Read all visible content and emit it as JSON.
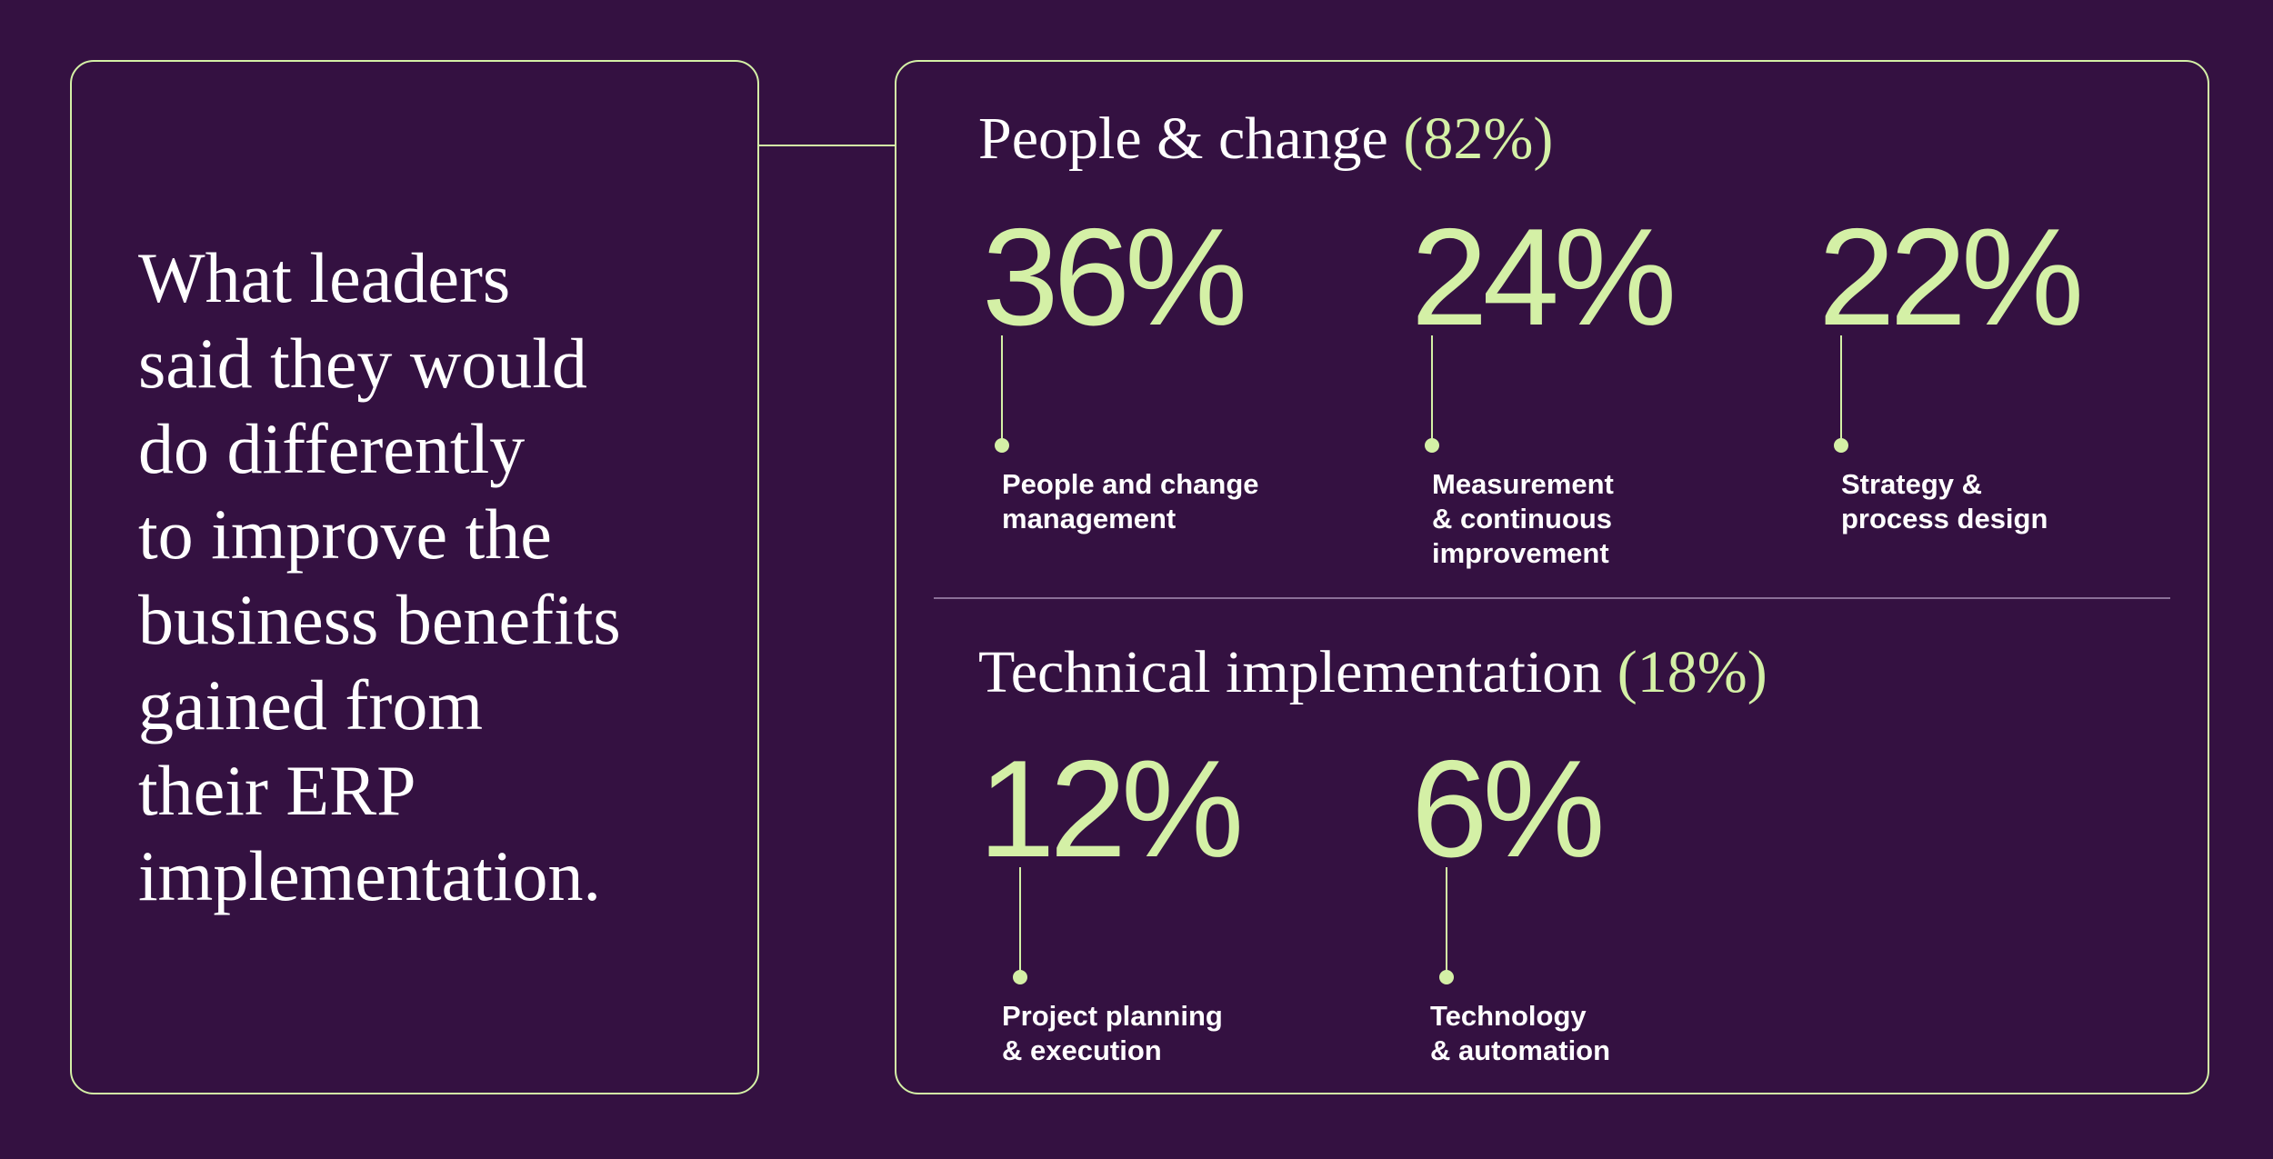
{
  "headline": {
    "lines": [
      "What leaders",
      "said they would",
      "do differently",
      "to improve the",
      "business benefits",
      "gained from",
      "their ERP",
      "implementation."
    ]
  },
  "sections": {
    "people": {
      "title": "People & change",
      "percent": "(82%)",
      "stats": [
        {
          "value": "36%",
          "label_lines": [
            "People and change",
            "management"
          ]
        },
        {
          "value": "24%",
          "label_lines": [
            "Measurement",
            "& continuous",
            "improvement"
          ]
        },
        {
          "value": "22%",
          "label_lines": [
            "Strategy &",
            "process design"
          ]
        }
      ]
    },
    "technical": {
      "title": "Technical implementation",
      "percent": "(18%)",
      "stats": [
        {
          "value": "12%",
          "label_lines": [
            "Project planning",
            "& execution"
          ]
        },
        {
          "value": "6%",
          "label_lines": [
            "Technology",
            "& automation"
          ]
        }
      ]
    }
  },
  "colors": {
    "background": "#341141",
    "accent": "#d4f0a6",
    "text": "#ffffff",
    "divider": "#8b6f98"
  }
}
